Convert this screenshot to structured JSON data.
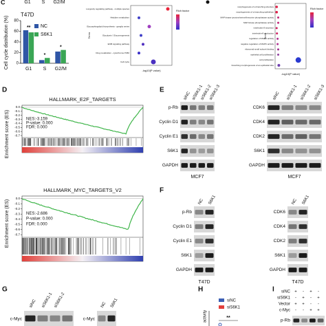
{
  "panel_c": {
    "letter": "C",
    "top_labels": [
      "G1",
      "S",
      "G2/M"
    ],
    "cell_line": "T47D",
    "chart": {
      "type": "bar",
      "ylabel": "Cell cycle distribution (%)",
      "categories": [
        "G1",
        "S",
        "G2/M"
      ],
      "series": [
        {
          "name": "NC",
          "color": "#2f56a6",
          "values": [
            62,
            6,
            22
          ]
        },
        {
          "name": "S6K1",
          "color": "#3aa655",
          "values": [
            58,
            10,
            25
          ]
        }
      ],
      "ylim": [
        0,
        80
      ],
      "yticks": [
        0,
        20,
        40,
        60,
        80
      ],
      "significance": [
        "**",
        "*",
        "*"
      ]
    }
  },
  "panel_kegg": {
    "ylabel": "Terms",
    "terms": [
      "Longevity regulating pathway - multiple species",
      "Histidine metabolism",
      "Glycosphingolipid biosynthesis - ganglio series",
      "Glycolysis / Gluconeogenesis",
      "ErbB signaling pathway",
      "Drug metabolism - cytochrome P450",
      "Cell cycle"
    ],
    "xlabel": "-log10(P value)",
    "legend_title": "Rich factor"
  },
  "panel_go": {
    "ylabel": "Terms",
    "terms": [
      "morphogenesis of a branching structure",
      "morphogenesis of a branching epithelium",
      "MAP kinase tyrosine/serine/threonine phosphatase activity",
      "MAP kinase phosphatase activity",
      "interleukin-8 secretion",
      "interleukin-8 production",
      "regulation of MAPK activity",
      "negative regulation of MAPK activity",
      "ribosomal small subunit binding",
      "epithelial cell proliferation",
      "cell proliferation",
      "branching morphogenesis of an epithelial tube"
    ],
    "xlabel": "-log10(P value)",
    "legend_title": "Rich factor"
  },
  "panel_d": {
    "letter": "D",
    "ylabel": "Enrichment score (ES)",
    "ylim": [
      -0.75,
      0.05
    ],
    "yticks": [
      {
        "value": 0,
        "label": "0.0"
      },
      -0.1,
      -0.2,
      -0.3,
      -0.4,
      -0.5,
      -0.6,
      -0.7
    ],
    "plots": [
      {
        "title": "HALLMARK_E2F_TARGETS",
        "nes": "NES:-3.159",
        "pvalue": "P-value: 0.000",
        "fdr": "FDR: 0.000"
      },
      {
        "title": "HALLMARK_MYC_TARGETS_V2",
        "nes": "NES:-2.686",
        "pvalue": "P-value: 0.000",
        "fdr": "FDR: 0.000"
      }
    ]
  },
  "panel_e": {
    "letter": "E",
    "lanes": [
      "siNC",
      "siS6K1-1",
      "siS6K1-2",
      "siS6K1-3"
    ],
    "left_rows": [
      "p-Rb",
      "Cyclin D1",
      "Cyclin E1",
      "S6K1",
      "GAPDH"
    ],
    "right_rows": [
      "CDK6",
      "CDK4",
      "CDK2",
      "S6K1",
      "GAPDH"
    ],
    "cell_line": "MCF7"
  },
  "panel_f": {
    "letter": "F",
    "lanes": [
      "NC",
      "S6K1"
    ],
    "left_rows": [
      "p-Rb",
      "Cyclin D1",
      "Cyclin E1",
      "S6K1",
      "GAPDH"
    ],
    "right_rows": [
      "CDK6",
      "CDK4",
      "CDK2",
      "S6K1",
      "GAPDH"
    ],
    "cell_line": "T47D"
  },
  "panel_g": {
    "letter": "G",
    "left_lanes": [
      "siNC",
      "siS6K1-1",
      "siS6K1-2"
    ],
    "right_lanes": [
      "NC",
      "S6K1"
    ],
    "row": "c-Myc"
  },
  "panel_h": {
    "letter": "H",
    "legend": [
      "siNC",
      "siS6K1"
    ],
    "ylabel": "activity",
    "significance": "**"
  },
  "panel_i": {
    "letter": "I",
    "rows": [
      "siNC",
      "siS6K1",
      "Vector",
      "c-Myc"
    ],
    "signs": [
      [
        "+",
        "-",
        "+",
        "-"
      ],
      [
        "-",
        "+",
        "-",
        "+"
      ],
      [
        "+",
        "+",
        "-",
        "-"
      ],
      [
        "-",
        "-",
        "+",
        "+"
      ]
    ],
    "blot": "p-Rb"
  }
}
